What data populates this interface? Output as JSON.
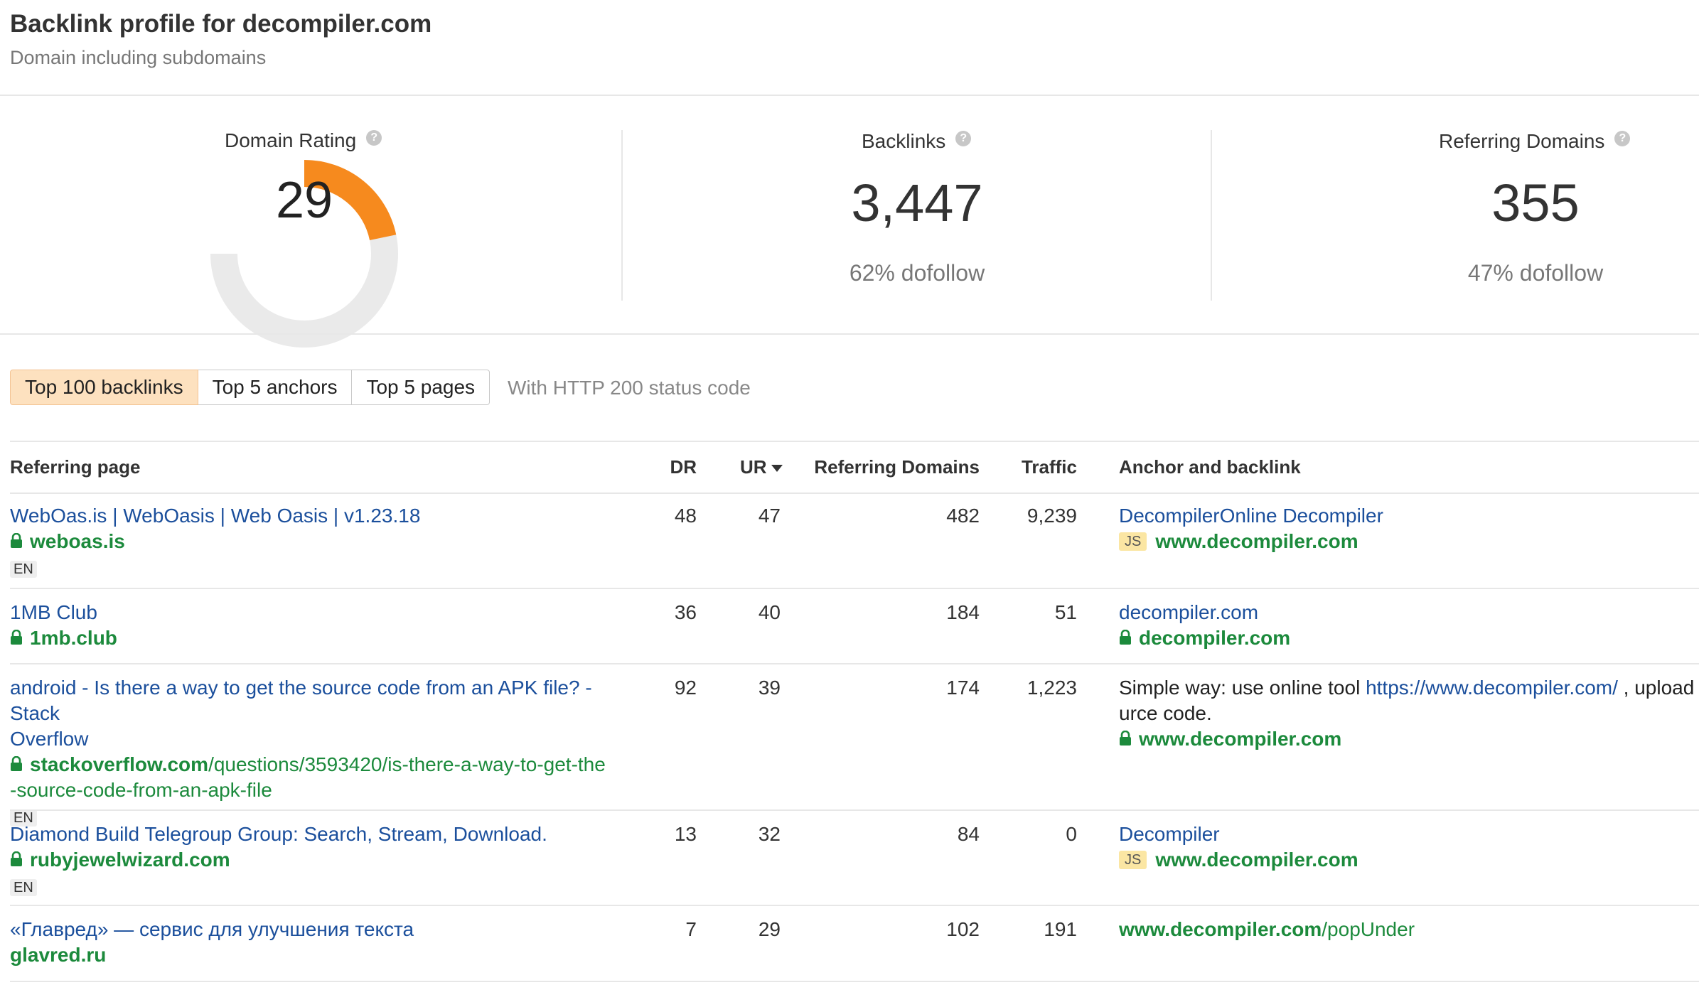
{
  "header": {
    "title": "Backlink profile for decompiler.com",
    "subtitle": "Domain including subdomains"
  },
  "metrics": {
    "domain_rating": {
      "label": "Domain Rating",
      "value": "29",
      "rating": 29,
      "scale_max": 100,
      "gauge_color": "#f68a1e"
    },
    "backlinks": {
      "label": "Backlinks",
      "value": "3,447",
      "sub": "62% dofollow"
    },
    "referring_domains": {
      "label": "Referring Domains",
      "value": "355",
      "sub": "47% dofollow"
    },
    "help_icon": "?"
  },
  "tabs": [
    {
      "label": "Top 100 backlinks",
      "active": true
    },
    {
      "label": "Top 5 anchors",
      "active": false
    },
    {
      "label": "Top 5 pages",
      "active": false
    }
  ],
  "tab_note": "With HTTP 200 status code",
  "table": {
    "columns": {
      "referring_page": "Referring page",
      "dr": "DR",
      "ur": "UR",
      "referring_domains": "Referring Domains",
      "traffic": "Traffic",
      "anchor": "Anchor and backlink"
    },
    "rows": [
      {
        "title": "WebOas.is | WebOasis | Web Oasis | v1.23.18",
        "domain": "weboas.is",
        "path": "",
        "lang": "EN",
        "dr": "48",
        "ur": "47",
        "rd": "482",
        "traffic": "9,239",
        "anchor_text": "DecompilerOnline Decompiler",
        "anchor_rest": "",
        "backlink_domain": "www.decompiler.com",
        "backlink_path": "",
        "badge": "JS"
      },
      {
        "title": "1MB Club",
        "domain": "1mb.club",
        "path": "",
        "lang": "",
        "dr": "36",
        "ur": "40",
        "rd": "184",
        "traffic": "51",
        "anchor_text": "decompiler.com",
        "anchor_rest": "",
        "backlink_domain": "decompiler.com",
        "backlink_path": "",
        "badge": ""
      },
      {
        "title_line1": "android - Is there a way to get the source code from an APK file? - Stack",
        "title_line2": "Overflow",
        "domain": "stackoverflow.com",
        "path_line1": "/questions/3593420/is-there-a-way-to-get-the",
        "path_line2": "-source-code-from-an-apk-file",
        "lang": "EN",
        "dr": "92",
        "ur": "39",
        "rd": "174",
        "traffic": "1,223",
        "anchor_prefix": "Simple way: use online tool ",
        "anchor_link": "https://www.decompiler.com/",
        "anchor_suffix": " , upload a",
        "anchor_line2": "urce code.",
        "backlink_domain": "www.decompiler.com",
        "backlink_path": "",
        "badge": ""
      },
      {
        "title": "Diamond Build Telegroup Group: Search, Stream, Download.",
        "domain": "rubyjewelwizard.com",
        "path": "",
        "lang": "EN",
        "dr": "13",
        "ur": "32",
        "rd": "84",
        "traffic": "0",
        "anchor_text": "Decompiler",
        "anchor_rest": "",
        "backlink_domain": "www.decompiler.com",
        "backlink_path": "",
        "badge": "JS"
      },
      {
        "title": "«Главред» — сервис для улучшения текста",
        "domain": "glavred.ru",
        "path": "",
        "lang": "",
        "dr": "7",
        "ur": "29",
        "rd": "102",
        "traffic": "191",
        "anchor_text": "",
        "anchor_rest": "",
        "backlink_domain": "www.decompiler.com",
        "backlink_path": "/popUnder",
        "badge": ""
      }
    ]
  }
}
